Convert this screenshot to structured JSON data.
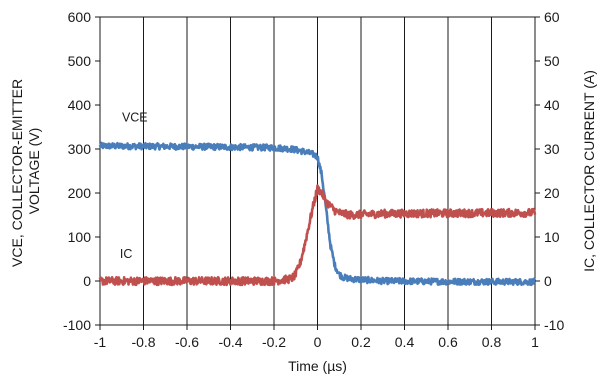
{
  "chart_data": {
    "type": "line",
    "xlabel": "Time (µs)",
    "ylabel_left": "VCE, COLLECTOR-EMITTER VOLTAGE (V)",
    "ylabel_left_lines": [
      "VCE, COLLECTOR-EMITTER",
      "VOLTAGE (V)"
    ],
    "ylabel_right": "IC, COLLECTOR CURRENT (A)",
    "xlim": [
      -1,
      1
    ],
    "ylim_left": [
      -100,
      600
    ],
    "ylim_right": [
      -10,
      60
    ],
    "x_ticks": [
      "-1",
      "-0.8",
      "-0.6",
      "-0.4",
      "-0.2",
      "0",
      "0.2",
      "0.4",
      "0.6",
      "0.8",
      "1"
    ],
    "y_left_ticks": [
      "-100",
      "0",
      "100",
      "200",
      "300",
      "400",
      "500",
      "600"
    ],
    "y_right_ticks": [
      "-10",
      "0",
      "10",
      "20",
      "30",
      "40",
      "50",
      "60"
    ],
    "grid": "vertical",
    "annotations": [
      {
        "text": "VCE",
        "series": "VCE",
        "x": -0.84,
        "y": 362
      },
      {
        "text": "IC",
        "series": "IC",
        "x": -0.88,
        "y": 52
      }
    ],
    "series": [
      {
        "name": "VCE",
        "axis": "left",
        "color": "#4a7ebb",
        "x": [
          -1.0,
          -0.5,
          -0.2,
          -0.12,
          -0.06,
          -0.02,
          0.0,
          0.02,
          0.04,
          0.06,
          0.08,
          0.1,
          0.12,
          0.15,
          0.2,
          0.3,
          0.5,
          1.0
        ],
        "values": [
          307,
          305,
          303,
          300,
          294,
          288,
          282,
          240,
          160,
          80,
          35,
          15,
          8,
          5,
          3,
          0,
          -1,
          -2
        ]
      },
      {
        "name": "IC",
        "axis": "right",
        "color": "#c0504d",
        "x": [
          -1.0,
          -0.5,
          -0.2,
          -0.12,
          -0.1,
          -0.08,
          -0.06,
          -0.04,
          -0.02,
          0.0,
          0.02,
          0.04,
          0.06,
          0.08,
          0.1,
          0.15,
          0.3,
          0.6,
          1.0
        ],
        "values": [
          0,
          0,
          0,
          0.5,
          1.5,
          4,
          8,
          12.5,
          17,
          21,
          20,
          18,
          17,
          16,
          15.5,
          15,
          15.3,
          15.4,
          15.5
        ]
      }
    ]
  }
}
